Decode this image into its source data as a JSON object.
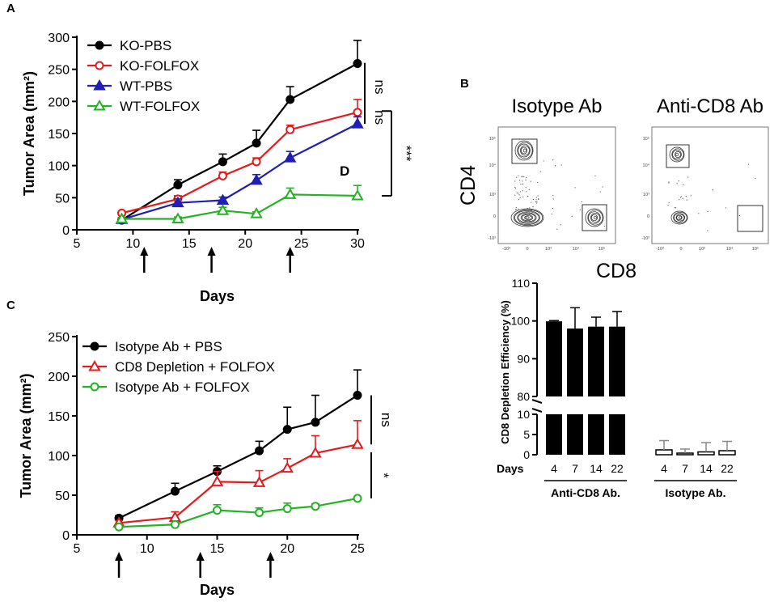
{
  "panels": {
    "A": "A",
    "B": "B",
    "C": "C"
  },
  "chart_data": [
    {
      "id": "A",
      "type": "line",
      "title": "",
      "xlabel": "Days",
      "ylabel": "Tumor Area (mm²)",
      "xlim": [
        5,
        30
      ],
      "ylim": [
        0,
        300
      ],
      "xticks": [
        5,
        10,
        15,
        20,
        25,
        30
      ],
      "yticks": [
        0,
        50,
        100,
        150,
        200,
        250,
        300
      ],
      "treatment_days": [
        11,
        17,
        24
      ],
      "legend_position": "top-left",
      "series": [
        {
          "name": "KO-PBS",
          "color": "#000000",
          "marker": "circle",
          "filled": true,
          "x": [
            9,
            14,
            18,
            21,
            24,
            30
          ],
          "y": [
            15,
            70,
            106,
            135,
            203,
            259
          ],
          "err": [
            3,
            8,
            12,
            20,
            20,
            36
          ]
        },
        {
          "name": "KO-FOLFOX",
          "color": "#e41a1c",
          "marker": "circle",
          "filled": false,
          "x": [
            9,
            14,
            18,
            21,
            24,
            30
          ],
          "y": [
            26,
            48,
            84,
            106,
            156,
            183
          ],
          "err": [
            3,
            5,
            6,
            6,
            7,
            20
          ]
        },
        {
          "name": "WT-PBS",
          "color": "#1f1fb4",
          "marker": "triangle",
          "filled": true,
          "x": [
            9,
            14,
            18,
            21,
            24,
            30
          ],
          "y": [
            16,
            42,
            46,
            77,
            112,
            165
          ],
          "err": [
            3,
            6,
            5,
            9,
            10,
            11
          ]
        },
        {
          "name": "WT-FOLFOX",
          "color": "#22b322",
          "marker": "triangle",
          "filled": false,
          "x": [
            9,
            14,
            18,
            21,
            24,
            30
          ],
          "y": [
            17,
            17,
            30,
            25,
            55,
            53
          ],
          "err": [
            2,
            3,
            5,
            3,
            10,
            16
          ]
        }
      ],
      "annotations": [
        {
          "text": "ns",
          "y1": 260,
          "y2": 185
        },
        {
          "text": "ns",
          "y1": 185,
          "y2": 165
        },
        {
          "text": "***",
          "y1": 185,
          "y2": 53
        },
        {
          "text": "D",
          "x": 29,
          "y": 92
        }
      ]
    },
    {
      "id": "B-flow",
      "type": "scatter",
      "title": "Flow cytometry contour plots",
      "xlabel": "CD8",
      "ylabel": "CD4",
      "plots": [
        {
          "title": "Isotype Ab"
        },
        {
          "title": "Anti-CD8 Ab"
        }
      ],
      "y_tick_labels": [
        "10⁵",
        "10⁴",
        "10³",
        "0",
        "-10³"
      ],
      "x_tick_labels": [
        "-10³",
        "0",
        "10³",
        "10⁴",
        "10⁵"
      ]
    },
    {
      "id": "B-bar",
      "type": "bar",
      "xlabel": "Days",
      "ylabel": "CD8 Depletion Efficiency (%)",
      "ylim_upper": [
        80,
        110
      ],
      "ylim_lower": [
        0,
        10
      ],
      "yticks_upper": [
        80,
        90,
        100,
        110
      ],
      "yticks_lower": [
        0,
        5,
        10
      ],
      "groups": [
        {
          "name": "Anti-CD8 Ab.",
          "color": "#000000",
          "categories": [
            "4",
            "7",
            "14",
            "22"
          ],
          "values": [
            99.9,
            98,
            98.5,
            98.5
          ],
          "err": [
            0.2,
            5.5,
            2.5,
            4
          ]
        },
        {
          "name": "Isotype Ab.",
          "color": "#888888",
          "categories": [
            "4",
            "7",
            "14",
            "22"
          ],
          "values": [
            1.2,
            0.4,
            0.7,
            1.0
          ],
          "err": [
            2.3,
            1.0,
            2.3,
            2.3
          ]
        }
      ]
    },
    {
      "id": "C",
      "type": "line",
      "title": "",
      "xlabel": "Days",
      "ylabel": "Tumor Area (mm²)",
      "xlim": [
        5,
        25
      ],
      "ylim": [
        0,
        250
      ],
      "xticks": [
        5,
        10,
        15,
        20,
        25
      ],
      "yticks": [
        0,
        50,
        100,
        150,
        200,
        250
      ],
      "treatment_days": [
        8,
        13.8,
        18.8
      ],
      "legend_position": "top-left",
      "series": [
        {
          "name": "Isotype Ab + PBS",
          "color": "#000000",
          "marker": "circle",
          "filled": true,
          "x": [
            8,
            12,
            15,
            18,
            20,
            22,
            25
          ],
          "y": [
            21,
            55,
            80,
            106,
            133,
            142,
            176
          ],
          "err": [
            3,
            10,
            7,
            12,
            28,
            34,
            32
          ]
        },
        {
          "name": "CD8 Depletion + FOLFOX",
          "color": "#e41a1c",
          "marker": "triangle",
          "filled": false,
          "x": [
            8,
            12,
            15,
            18,
            20,
            22,
            25
          ],
          "y": [
            15,
            22,
            67,
            66,
            84,
            103,
            114
          ],
          "err": [
            3,
            7,
            13,
            15,
            12,
            22,
            30
          ]
        },
        {
          "name": "Isotype Ab + FOLFOX",
          "color": "#22b322",
          "marker": "circle",
          "filled": false,
          "x": [
            8,
            12,
            15,
            18,
            20,
            22,
            25
          ],
          "y": [
            10,
            13,
            31,
            28,
            33,
            36,
            46
          ],
          "err": [
            2,
            3,
            7,
            6,
            7,
            3,
            2
          ]
        }
      ],
      "annotations": [
        {
          "text": "ns",
          "y1": 176,
          "y2": 114
        },
        {
          "text": "*",
          "y1": 104,
          "y2": 46
        }
      ]
    }
  ]
}
